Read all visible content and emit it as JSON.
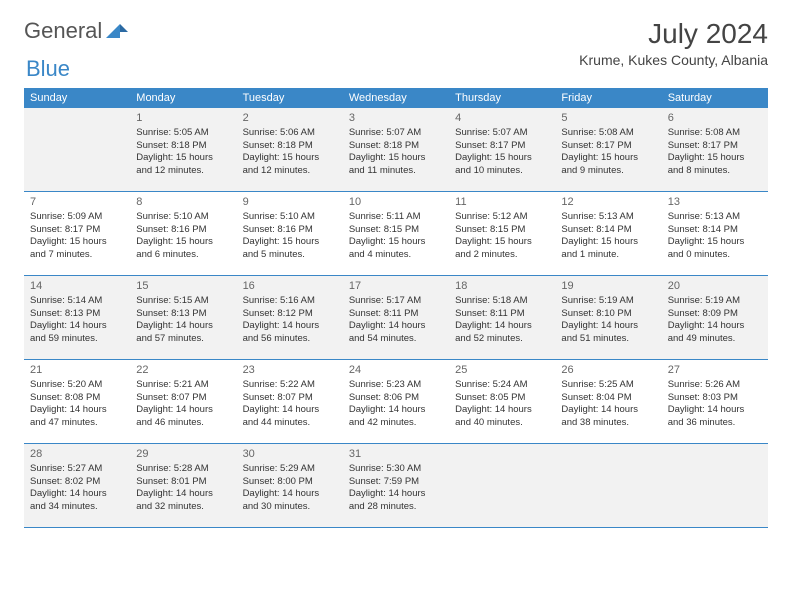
{
  "brand": {
    "part1": "General",
    "part2": "Blue"
  },
  "title": "July 2024",
  "location": "Krume, Kukes County, Albania",
  "colors": {
    "header_bg": "#3a87c7",
    "header_text": "#ffffff",
    "shaded_bg": "#f2f2f2",
    "border": "#3a87c7",
    "text": "#333333"
  },
  "weekdays": [
    "Sunday",
    "Monday",
    "Tuesday",
    "Wednesday",
    "Thursday",
    "Friday",
    "Saturday"
  ],
  "weeks": [
    [
      null,
      {
        "n": "1",
        "sr": "Sunrise: 5:05 AM",
        "ss": "Sunset: 8:18 PM",
        "dl": "Daylight: 15 hours and 12 minutes."
      },
      {
        "n": "2",
        "sr": "Sunrise: 5:06 AM",
        "ss": "Sunset: 8:18 PM",
        "dl": "Daylight: 15 hours and 12 minutes."
      },
      {
        "n": "3",
        "sr": "Sunrise: 5:07 AM",
        "ss": "Sunset: 8:18 PM",
        "dl": "Daylight: 15 hours and 11 minutes."
      },
      {
        "n": "4",
        "sr": "Sunrise: 5:07 AM",
        "ss": "Sunset: 8:17 PM",
        "dl": "Daylight: 15 hours and 10 minutes."
      },
      {
        "n": "5",
        "sr": "Sunrise: 5:08 AM",
        "ss": "Sunset: 8:17 PM",
        "dl": "Daylight: 15 hours and 9 minutes."
      },
      {
        "n": "6",
        "sr": "Sunrise: 5:08 AM",
        "ss": "Sunset: 8:17 PM",
        "dl": "Daylight: 15 hours and 8 minutes."
      }
    ],
    [
      {
        "n": "7",
        "sr": "Sunrise: 5:09 AM",
        "ss": "Sunset: 8:17 PM",
        "dl": "Daylight: 15 hours and 7 minutes."
      },
      {
        "n": "8",
        "sr": "Sunrise: 5:10 AM",
        "ss": "Sunset: 8:16 PM",
        "dl": "Daylight: 15 hours and 6 minutes."
      },
      {
        "n": "9",
        "sr": "Sunrise: 5:10 AM",
        "ss": "Sunset: 8:16 PM",
        "dl": "Daylight: 15 hours and 5 minutes."
      },
      {
        "n": "10",
        "sr": "Sunrise: 5:11 AM",
        "ss": "Sunset: 8:15 PM",
        "dl": "Daylight: 15 hours and 4 minutes."
      },
      {
        "n": "11",
        "sr": "Sunrise: 5:12 AM",
        "ss": "Sunset: 8:15 PM",
        "dl": "Daylight: 15 hours and 2 minutes."
      },
      {
        "n": "12",
        "sr": "Sunrise: 5:13 AM",
        "ss": "Sunset: 8:14 PM",
        "dl": "Daylight: 15 hours and 1 minute."
      },
      {
        "n": "13",
        "sr": "Sunrise: 5:13 AM",
        "ss": "Sunset: 8:14 PM",
        "dl": "Daylight: 15 hours and 0 minutes."
      }
    ],
    [
      {
        "n": "14",
        "sr": "Sunrise: 5:14 AM",
        "ss": "Sunset: 8:13 PM",
        "dl": "Daylight: 14 hours and 59 minutes."
      },
      {
        "n": "15",
        "sr": "Sunrise: 5:15 AM",
        "ss": "Sunset: 8:13 PM",
        "dl": "Daylight: 14 hours and 57 minutes."
      },
      {
        "n": "16",
        "sr": "Sunrise: 5:16 AM",
        "ss": "Sunset: 8:12 PM",
        "dl": "Daylight: 14 hours and 56 minutes."
      },
      {
        "n": "17",
        "sr": "Sunrise: 5:17 AM",
        "ss": "Sunset: 8:11 PM",
        "dl": "Daylight: 14 hours and 54 minutes."
      },
      {
        "n": "18",
        "sr": "Sunrise: 5:18 AM",
        "ss": "Sunset: 8:11 PM",
        "dl": "Daylight: 14 hours and 52 minutes."
      },
      {
        "n": "19",
        "sr": "Sunrise: 5:19 AM",
        "ss": "Sunset: 8:10 PM",
        "dl": "Daylight: 14 hours and 51 minutes."
      },
      {
        "n": "20",
        "sr": "Sunrise: 5:19 AM",
        "ss": "Sunset: 8:09 PM",
        "dl": "Daylight: 14 hours and 49 minutes."
      }
    ],
    [
      {
        "n": "21",
        "sr": "Sunrise: 5:20 AM",
        "ss": "Sunset: 8:08 PM",
        "dl": "Daylight: 14 hours and 47 minutes."
      },
      {
        "n": "22",
        "sr": "Sunrise: 5:21 AM",
        "ss": "Sunset: 8:07 PM",
        "dl": "Daylight: 14 hours and 46 minutes."
      },
      {
        "n": "23",
        "sr": "Sunrise: 5:22 AM",
        "ss": "Sunset: 8:07 PM",
        "dl": "Daylight: 14 hours and 44 minutes."
      },
      {
        "n": "24",
        "sr": "Sunrise: 5:23 AM",
        "ss": "Sunset: 8:06 PM",
        "dl": "Daylight: 14 hours and 42 minutes."
      },
      {
        "n": "25",
        "sr": "Sunrise: 5:24 AM",
        "ss": "Sunset: 8:05 PM",
        "dl": "Daylight: 14 hours and 40 minutes."
      },
      {
        "n": "26",
        "sr": "Sunrise: 5:25 AM",
        "ss": "Sunset: 8:04 PM",
        "dl": "Daylight: 14 hours and 38 minutes."
      },
      {
        "n": "27",
        "sr": "Sunrise: 5:26 AM",
        "ss": "Sunset: 8:03 PM",
        "dl": "Daylight: 14 hours and 36 minutes."
      }
    ],
    [
      {
        "n": "28",
        "sr": "Sunrise: 5:27 AM",
        "ss": "Sunset: 8:02 PM",
        "dl": "Daylight: 14 hours and 34 minutes."
      },
      {
        "n": "29",
        "sr": "Sunrise: 5:28 AM",
        "ss": "Sunset: 8:01 PM",
        "dl": "Daylight: 14 hours and 32 minutes."
      },
      {
        "n": "30",
        "sr": "Sunrise: 5:29 AM",
        "ss": "Sunset: 8:00 PM",
        "dl": "Daylight: 14 hours and 30 minutes."
      },
      {
        "n": "31",
        "sr": "Sunrise: 5:30 AM",
        "ss": "Sunset: 7:59 PM",
        "dl": "Daylight: 14 hours and 28 minutes."
      },
      null,
      null,
      null
    ]
  ],
  "shaded_weeks": [
    0,
    2,
    4
  ]
}
